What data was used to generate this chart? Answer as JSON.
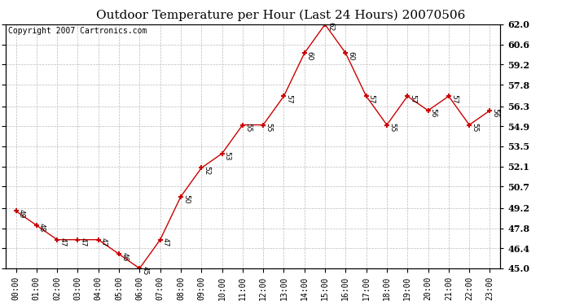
{
  "title": "Outdoor Temperature per Hour (Last 24 Hours) 20070506",
  "copyright_text": "Copyright 2007 Cartronics.com",
  "hours": [
    "00:00",
    "01:00",
    "02:00",
    "03:00",
    "04:00",
    "05:00",
    "06:00",
    "07:00",
    "08:00",
    "09:00",
    "10:00",
    "11:00",
    "12:00",
    "13:00",
    "14:00",
    "15:00",
    "16:00",
    "17:00",
    "18:00",
    "19:00",
    "20:00",
    "21:00",
    "22:00",
    "23:00"
  ],
  "temperatures": [
    49,
    48,
    47,
    47,
    47,
    46,
    45,
    47,
    50,
    52,
    53,
    55,
    55,
    57,
    60,
    62,
    60,
    57,
    55,
    57,
    56,
    57,
    55,
    56
  ],
  "line_color": "#cc0000",
  "marker_color": "#cc0000",
  "bg_color": "#ffffff",
  "grid_color": "#bbbbbb",
  "yticks": [
    45.0,
    46.4,
    47.8,
    49.2,
    50.7,
    52.1,
    53.5,
    54.9,
    56.3,
    57.8,
    59.2,
    60.6,
    62.0
  ],
  "ylim_min": 45.0,
  "ylim_max": 62.0,
  "title_fontsize": 11,
  "copyright_fontsize": 7
}
